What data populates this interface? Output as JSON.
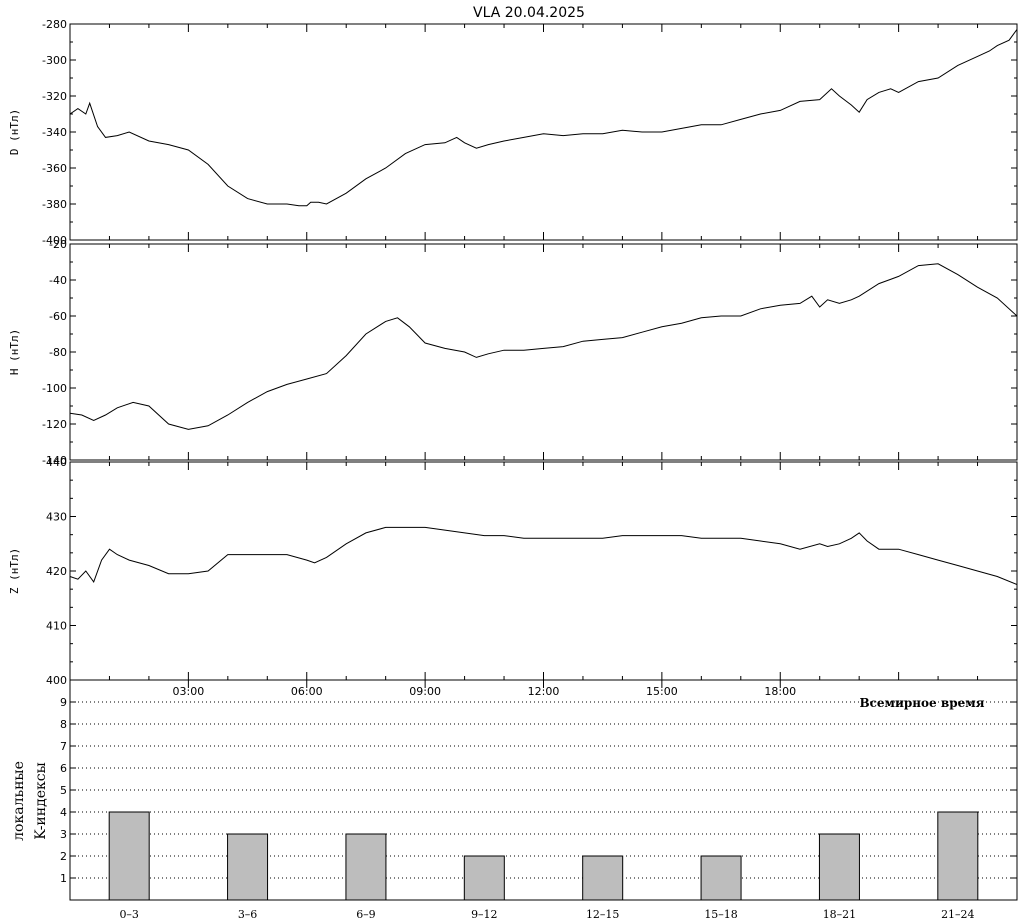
{
  "title": "VLA   20.04.2025",
  "chart_data": [
    {
      "type": "line",
      "panel": "D",
      "ylabel_lines": [
        "D (нТл)"
      ],
      "ylim": [
        -400,
        -280
      ],
      "yticks": [
        -400,
        -380,
        -360,
        -340,
        -320,
        -300,
        -280
      ],
      "xlim": [
        0,
        24
      ],
      "series": [
        {
          "x": [
            0,
            0.2,
            0.4,
            0.5,
            0.7,
            0.9,
            1.2,
            1.5,
            2,
            2.5,
            3,
            3.5,
            4,
            4.5,
            5,
            5.5,
            5.8,
            6,
            6.1,
            6.3,
            6.5,
            7,
            7.5,
            8,
            8.5,
            9,
            9.5,
            9.8,
            10,
            10.3,
            10.6,
            11,
            11.5,
            12,
            12.5,
            13,
            13.5,
            14,
            14.5,
            15,
            15.5,
            16,
            16.5,
            17,
            17.5,
            18,
            18.5,
            19,
            19.3,
            19.5,
            19.8,
            20,
            20.2,
            20.5,
            20.8,
            21,
            21.5,
            22,
            22.5,
            23,
            23.3,
            23.5,
            23.8,
            24
          ],
          "y": [
            -330,
            -327,
            -330,
            -324,
            -337,
            -343,
            -342,
            -340,
            -345,
            -347,
            -350,
            -358,
            -370,
            -377,
            -380,
            -380,
            -381,
            -381,
            -379,
            -379,
            -380,
            -374,
            -366,
            -360,
            -352,
            -347,
            -346,
            -343,
            -346,
            -349,
            -347,
            -345,
            -343,
            -341,
            -342,
            -341,
            -341,
            -339,
            -340,
            -340,
            -338,
            -336,
            -336,
            -333,
            -330,
            -328,
            -323,
            -322,
            -316,
            -320,
            -325,
            -329,
            -322,
            -318,
            -316,
            -318,
            -312,
            -310,
            -303,
            -298,
            -295,
            -292,
            -289,
            -283
          ]
        }
      ]
    },
    {
      "type": "line",
      "panel": "H",
      "ylabel_lines": [
        "H (нТл)"
      ],
      "ylim": [
        -140,
        -20
      ],
      "yticks": [
        -140,
        -120,
        -100,
        -80,
        -60,
        -40,
        -20
      ],
      "xlim": [
        0,
        24
      ],
      "series": [
        {
          "x": [
            0,
            0.3,
            0.6,
            0.9,
            1.2,
            1.6,
            2,
            2.5,
            3,
            3.5,
            4,
            4.5,
            5,
            5.5,
            6,
            6.5,
            7,
            7.5,
            8,
            8.3,
            8.6,
            9,
            9.5,
            10,
            10.3,
            10.6,
            11,
            11.5,
            12,
            12.5,
            13,
            13.5,
            14,
            14.5,
            15,
            15.5,
            16,
            16.5,
            17,
            17.5,
            18,
            18.5,
            18.8,
            19,
            19.2,
            19.5,
            19.8,
            20,
            20.5,
            21,
            21.5,
            22,
            22.5,
            23,
            23.5,
            24
          ],
          "y": [
            -114,
            -115,
            -118,
            -115,
            -111,
            -108,
            -110,
            -120,
            -123,
            -121,
            -115,
            -108,
            -102,
            -98,
            -95,
            -92,
            -82,
            -70,
            -63,
            -61,
            -66,
            -75,
            -78,
            -80,
            -83,
            -81,
            -79,
            -79,
            -78,
            -77,
            -74,
            -73,
            -72,
            -69,
            -66,
            -64,
            -61,
            -60,
            -60,
            -56,
            -54,
            -53,
            -49,
            -55,
            -51,
            -53,
            -51,
            -49,
            -42,
            -38,
            -32,
            -31,
            -37,
            -44,
            -50,
            -60
          ]
        }
      ]
    },
    {
      "type": "line",
      "panel": "Z",
      "ylabel_lines": [
        "Z (нТл)"
      ],
      "ylim": [
        400,
        440
      ],
      "yticks": [
        400,
        410,
        420,
        430,
        440
      ],
      "xlim": [
        0,
        24
      ],
      "series": [
        {
          "x": [
            0,
            0.2,
            0.4,
            0.6,
            0.8,
            1,
            1.2,
            1.5,
            2,
            2.5,
            3,
            3.5,
            4,
            4.5,
            5,
            5.5,
            6,
            6.2,
            6.5,
            7,
            7.5,
            8,
            8.5,
            9,
            9.5,
            10,
            10.5,
            11,
            11.5,
            12,
            12.5,
            13,
            13.5,
            14,
            14.5,
            15,
            15.5,
            16,
            16.5,
            17,
            17.5,
            18,
            18.5,
            19,
            19.2,
            19.5,
            19.8,
            20,
            20.2,
            20.5,
            21,
            21.5,
            22,
            22.5,
            23,
            23.5,
            24
          ],
          "y": [
            419,
            418.5,
            420,
            418,
            422,
            424,
            423,
            422,
            421,
            419.5,
            419.5,
            420,
            423,
            423,
            423,
            423,
            422,
            421.5,
            422.5,
            425,
            427,
            428,
            428,
            428,
            427.5,
            427,
            426.5,
            426.5,
            426,
            426,
            426,
            426,
            426,
            426.5,
            426.5,
            426.5,
            426.5,
            426,
            426,
            426,
            425.5,
            425,
            424,
            425,
            424.5,
            425,
            426,
            427,
            425.5,
            424,
            424,
            423,
            422,
            421,
            420,
            419,
            417.5
          ]
        }
      ]
    },
    {
      "type": "bar",
      "panel": "K",
      "ylabel_lines": [
        "локальные",
        "K-индексы"
      ],
      "ylim": [
        0,
        10
      ],
      "yticks": [
        1,
        2,
        3,
        4,
        5,
        6,
        7,
        8,
        9
      ],
      "categories": [
        "0–3",
        "3–6",
        "6–9",
        "9–12",
        "12–15",
        "15–18",
        "18–21",
        "21–24"
      ],
      "values": [
        4,
        3,
        3,
        2,
        2,
        2,
        3,
        4
      ],
      "grid": true
    }
  ],
  "time_axis": {
    "ticks": [
      3,
      6,
      9,
      12,
      15,
      18
    ],
    "labels": [
      "03:00",
      "06:00",
      "09:00",
      "12:00",
      "15:00",
      "18:00"
    ],
    "xlabel": "Всемирное время"
  }
}
